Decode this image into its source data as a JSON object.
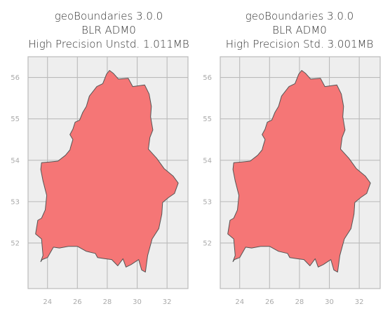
{
  "panels": [
    {
      "title_lines": [
        "geoBoundaries 3.0.0",
        "BLR ADM0",
        "High Precision Unstd. 1.011MB"
      ],
      "x_ticks": [
        "24",
        "26",
        "28",
        "30",
        "32"
      ],
      "y_ticks": [
        "56",
        "55",
        "54",
        "53",
        "52"
      ]
    },
    {
      "title_lines": [
        "geoBoundaries 3.0.0",
        "BLR ADM0",
        "High Precision Std. 3.001MB"
      ],
      "x_ticks": [
        "24",
        "26",
        "28",
        "30",
        "32"
      ],
      "y_ticks": [
        "56",
        "55",
        "54",
        "53",
        "52"
      ]
    }
  ],
  "chart_data": {
    "type": "map",
    "xlim": [
      22.7,
      33.4
    ],
    "ylim": [
      50.9,
      56.5
    ],
    "grid": true,
    "fill_color": "#f57676",
    "edge_color": "#555555",
    "background_color": "#eeeeee",
    "outline_lonlat": [
      [
        23.6,
        53.94
      ],
      [
        24.2,
        53.96
      ],
      [
        24.7,
        53.98
      ],
      [
        25.2,
        54.12
      ],
      [
        25.5,
        54.25
      ],
      [
        25.55,
        54.32
      ],
      [
        25.7,
        54.5
      ],
      [
        25.5,
        54.62
      ],
      [
        25.7,
        54.75
      ],
      [
        25.85,
        54.92
      ],
      [
        26.15,
        54.97
      ],
      [
        26.35,
        55.15
      ],
      [
        26.6,
        55.3
      ],
      [
        26.8,
        55.55
      ],
      [
        27.3,
        55.78
      ],
      [
        27.7,
        55.85
      ],
      [
        27.95,
        56.08
      ],
      [
        28.15,
        56.17
      ],
      [
        28.4,
        56.1
      ],
      [
        28.75,
        55.96
      ],
      [
        29.4,
        55.98
      ],
      [
        29.7,
        55.78
      ],
      [
        30.5,
        55.82
      ],
      [
        30.8,
        55.6
      ],
      [
        30.95,
        55.3
      ],
      [
        30.9,
        55.05
      ],
      [
        31.05,
        54.73
      ],
      [
        30.85,
        54.55
      ],
      [
        30.75,
        54.27
      ],
      [
        31.3,
        54.05
      ],
      [
        31.8,
        53.8
      ],
      [
        32.4,
        53.62
      ],
      [
        32.75,
        53.45
      ],
      [
        32.5,
        53.2
      ],
      [
        32.1,
        53.1
      ],
      [
        31.7,
        52.98
      ],
      [
        31.65,
        52.7
      ],
      [
        31.45,
        52.35
      ],
      [
        31.0,
        52.1
      ],
      [
        30.7,
        51.7
      ],
      [
        30.55,
        51.3
      ],
      [
        30.3,
        51.35
      ],
      [
        30.1,
        51.6
      ],
      [
        29.6,
        51.48
      ],
      [
        29.25,
        51.42
      ],
      [
        29.05,
        51.62
      ],
      [
        28.7,
        51.45
      ],
      [
        28.3,
        51.6
      ],
      [
        27.85,
        51.62
      ],
      [
        27.35,
        51.65
      ],
      [
        27.2,
        51.75
      ],
      [
        26.6,
        51.8
      ],
      [
        26.0,
        51.92
      ],
      [
        25.4,
        51.92
      ],
      [
        24.8,
        51.88
      ],
      [
        24.4,
        51.9
      ],
      [
        24.0,
        51.65
      ],
      [
        23.65,
        51.6
      ],
      [
        23.55,
        51.55
      ],
      [
        23.7,
        51.7
      ],
      [
        23.6,
        52.1
      ],
      [
        23.2,
        52.22
      ],
      [
        23.35,
        52.55
      ],
      [
        23.6,
        52.6
      ],
      [
        23.85,
        52.8
      ],
      [
        23.95,
        53.15
      ],
      [
        23.7,
        53.5
      ],
      [
        23.55,
        53.78
      ],
      [
        23.6,
        53.94
      ]
    ]
  }
}
